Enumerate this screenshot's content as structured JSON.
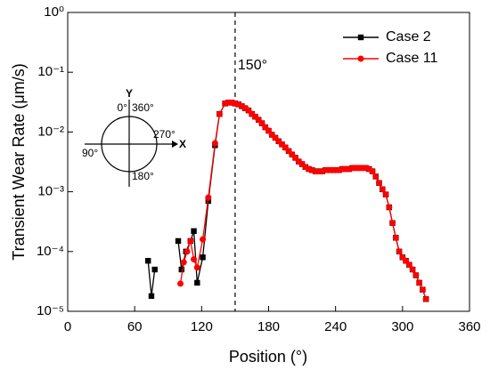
{
  "chart_data": {
    "type": "line",
    "x_label": "Position (°)",
    "y_label": "Transient Wear Rate (μm/s)",
    "xlim": [
      0,
      360
    ],
    "xticks": [
      0,
      60,
      120,
      180,
      240,
      300,
      360
    ],
    "ylim": [
      1e-05,
      1
    ],
    "log_y": true,
    "yticks": [
      {
        "value": 1e-05,
        "label": "10⁻⁵"
      },
      {
        "value": 0.0001,
        "label": "10⁻⁴"
      },
      {
        "value": 0.001,
        "label": "10⁻³"
      },
      {
        "value": 0.01,
        "label": "10⁻²"
      },
      {
        "value": 0.1,
        "label": "10⁻¹"
      },
      {
        "value": 1,
        "label": "10⁰"
      }
    ],
    "legend": "upper right",
    "vline": {
      "x": 150,
      "label": "150°"
    },
    "inset": {
      "y_label": "Y",
      "x_label": "X",
      "top_left": "0°",
      "top_right": "360°",
      "right": "270°",
      "left": "90°",
      "bottom": "180°"
    },
    "series": [
      {
        "name": "Case 2",
        "color": "#000000",
        "marker": "square",
        "x": [
          72,
          75,
          78,
          90,
          99,
          102,
          106,
          110,
          113,
          116,
          121,
          126,
          132,
          136,
          141,
          144,
          147,
          150,
          153,
          156,
          159,
          162,
          165,
          168,
          171,
          174,
          177,
          180,
          183,
          186,
          189,
          192,
          195,
          198,
          201,
          204,
          207,
          210,
          213,
          216,
          219,
          222,
          225,
          228,
          231,
          234,
          237,
          240,
          243,
          246,
          249,
          252,
          255,
          258,
          261,
          264,
          267,
          270,
          273,
          276,
          279,
          282,
          285,
          288,
          291,
          294,
          297,
          300,
          303,
          306,
          309,
          312,
          315,
          318,
          321
        ],
        "values": [
          7e-05,
          1.8e-05,
          5e-05,
          null,
          0.00015,
          5e-05,
          0.0001,
          0.00015,
          0.00022,
          3e-05,
          8e-05,
          0.0007,
          0.006,
          0.02,
          0.03,
          0.031,
          0.031,
          0.03,
          0.029,
          0.027,
          0.025,
          0.023,
          0.02,
          0.018,
          0.016,
          0.014,
          0.012,
          0.0105,
          0.009,
          0.008,
          0.007,
          0.0062,
          0.0055,
          0.0048,
          0.0042,
          0.0037,
          0.0032,
          0.0029,
          0.0026,
          0.0024,
          0.0023,
          0.0022,
          0.0022,
          0.0022,
          0.0023,
          0.0023,
          0.0023,
          0.0023,
          0.0023,
          0.0024,
          0.0024,
          0.0024,
          0.0025,
          0.0025,
          0.0025,
          0.0025,
          0.0025,
          0.0024,
          0.0022,
          0.0018,
          0.0014,
          0.0011,
          0.0009,
          0.00055,
          0.0003,
          0.00017,
          0.0001,
          8e-05,
          7e-05,
          6e-05,
          5e-05,
          4e-05,
          3e-05,
          2.3e-05,
          1.6e-05
        ]
      },
      {
        "name": "Case 11",
        "color": "#ff0000",
        "marker": "circle",
        "x": [
          101,
          104,
          107,
          110,
          113,
          116,
          121,
          126,
          132,
          136,
          141,
          144,
          147,
          150,
          153,
          156,
          159,
          162,
          165,
          168,
          171,
          174,
          177,
          180,
          183,
          186,
          189,
          192,
          195,
          198,
          201,
          204,
          207,
          210,
          213,
          216,
          219,
          222,
          225,
          228,
          231,
          234,
          237,
          240,
          243,
          246,
          249,
          252,
          255,
          258,
          261,
          264,
          267,
          270,
          273,
          276,
          279,
          282,
          285,
          288,
          291,
          294,
          297,
          300,
          303,
          306,
          309,
          312,
          315,
          318,
          321
        ],
        "values": [
          2.9e-05,
          6.6e-05,
          0.0001,
          0.00015,
          7.4e-05,
          5.4e-05,
          0.00016,
          0.0008,
          0.0065,
          0.02,
          0.03,
          0.031,
          0.031,
          0.03,
          0.029,
          0.027,
          0.025,
          0.023,
          0.02,
          0.018,
          0.016,
          0.014,
          0.012,
          0.0105,
          0.009,
          0.008,
          0.007,
          0.0062,
          0.0055,
          0.0048,
          0.0042,
          0.0037,
          0.0032,
          0.0029,
          0.0026,
          0.0024,
          0.0023,
          0.0022,
          0.0022,
          0.0022,
          0.0023,
          0.0023,
          0.0023,
          0.0023,
          0.0023,
          0.0024,
          0.0024,
          0.0024,
          0.0025,
          0.0025,
          0.0025,
          0.0025,
          0.0025,
          0.0024,
          0.0022,
          0.0018,
          0.0014,
          0.0011,
          0.0009,
          0.00055,
          0.0003,
          0.00017,
          0.0001,
          8e-05,
          7e-05,
          6e-05,
          5e-05,
          4e-05,
          3e-05,
          2.3e-05,
          1.6e-05
        ]
      }
    ]
  }
}
